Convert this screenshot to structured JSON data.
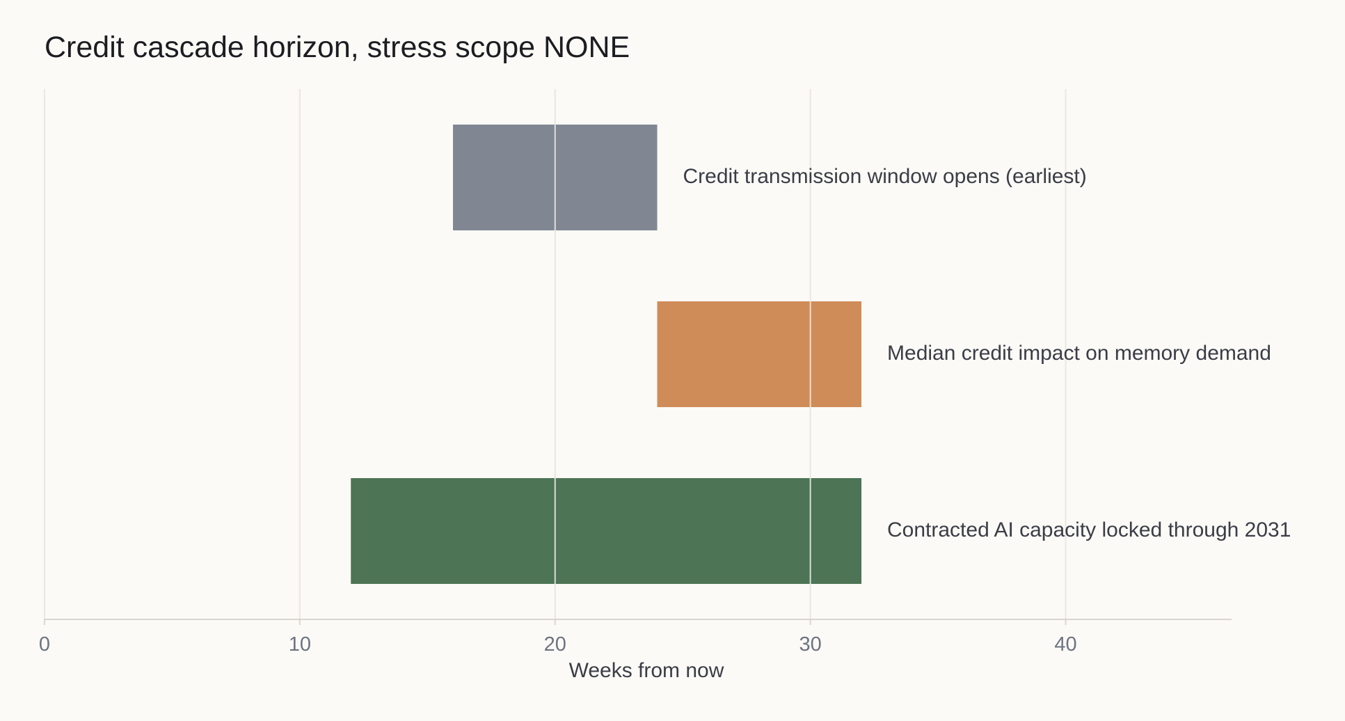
{
  "chart_data": {
    "type": "bar",
    "orientation": "horizontal-range",
    "title": "Credit cascade horizon, stress scope NONE",
    "xlabel": "Weeks from now",
    "ylabel": "",
    "xlim": [
      0,
      46.5
    ],
    "xticks": [
      0,
      10,
      20,
      30,
      40
    ],
    "grid": true,
    "series": [
      {
        "label": "Credit transmission window opens (earliest)",
        "start": 16,
        "end": 24,
        "color": "#808793"
      },
      {
        "label": "Median credit impact on memory demand",
        "start": 24,
        "end": 32,
        "color": "#d08c58"
      },
      {
        "label": "Contracted AI capacity locked through 2031",
        "start": 12,
        "end": 32,
        "color": "#4c7455"
      }
    ]
  },
  "colors": {
    "background": "#fbfaf6",
    "grid": "#e6e3dc",
    "axis": "#d9d6cf"
  }
}
